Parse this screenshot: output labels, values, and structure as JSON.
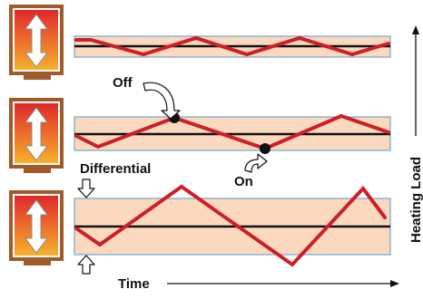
{
  "labels": {
    "off": "Off",
    "on": "On",
    "differential": "Differential",
    "time": "Time",
    "heating_load": "Heating Load"
  },
  "panels": [
    {
      "name": "low-load",
      "differential_relative": 0.33
    },
    {
      "name": "medium-load",
      "differential_relative": 0.58
    },
    {
      "name": "high-load",
      "differential_relative": 1.0
    }
  ],
  "colors": {
    "band_fill": "#fbd9bf",
    "band_stroke": "#6fa6d2",
    "setpoint_line": "#111111",
    "temperature_curve": "#cc1f2a",
    "thermostat_frame": "#a05a2c",
    "thermostat_gradient_top": "#e0262b",
    "thermostat_gradient_bottom": "#f7b32b",
    "switch_point": "#111111",
    "text": "#111111"
  },
  "icons": {
    "thermostat": "thermostat-icon",
    "up_down_arrow": "up-down-arrow-icon",
    "callout_arrow": "curved-arrow-icon",
    "differential_marker": "hollow-arrow-icon"
  }
}
